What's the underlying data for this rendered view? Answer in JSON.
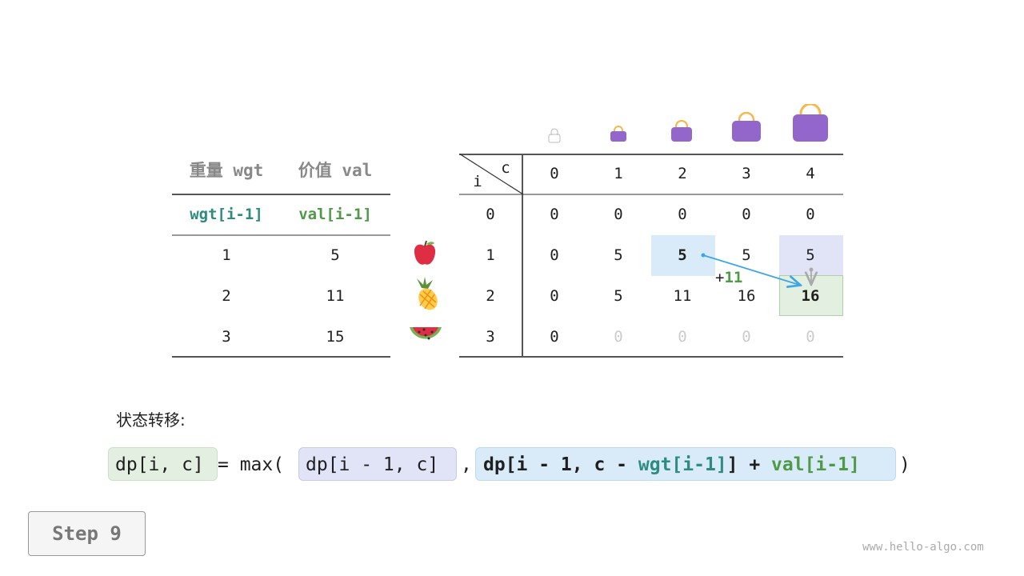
{
  "item_table": {
    "headers": [
      "重量 wgt",
      "价值 val"
    ],
    "subheaders": [
      "wgt[i-1]",
      "val[i-1]"
    ],
    "rows": [
      [
        "1",
        "5"
      ],
      [
        "2",
        "11"
      ],
      [
        "3",
        "15"
      ]
    ],
    "fruits": [
      "apple-icon",
      "pineapple-icon",
      "watermelon-icon"
    ]
  },
  "dp_table": {
    "corner_i": "i",
    "corner_c": "c",
    "col_headers": [
      "0",
      "1",
      "2",
      "3",
      "4"
    ],
    "row_headers": [
      "0",
      "1",
      "2",
      "3"
    ],
    "rows": [
      [
        "0",
        "0",
        "0",
        "0",
        "0"
      ],
      [
        "0",
        "5",
        "5",
        "5",
        "5"
      ],
      [
        "0",
        "5",
        "11",
        "16",
        "16"
      ],
      [
        "0",
        "0",
        "0",
        "0",
        "0"
      ]
    ],
    "annotation_plus": "+",
    "annotation_value": "11"
  },
  "formula": {
    "label": "状态转移:",
    "lhs": "dp[i, c]",
    "eq": " = max(",
    "arg1": "dp[i - 1, c]",
    "comma": ",",
    "arg2_a": "dp[i - 1, c - ",
    "arg2_wgt": "wgt[i-1]",
    "arg2_b": "] + ",
    "arg2_val": "val[i-1]",
    "close": ")"
  },
  "step_button": "Step 9",
  "watermark": "www.hello-algo.com",
  "colors": {
    "teal": "#2e8b7f",
    "green": "#4e9a47",
    "blue_hl": "#d9ebf9",
    "purple_hl": "#e1e4f7",
    "green_hl": "#e3f0e1",
    "bag": "#9366cc",
    "handle": "#f5b84a",
    "arrow": "#3ea5e8"
  }
}
